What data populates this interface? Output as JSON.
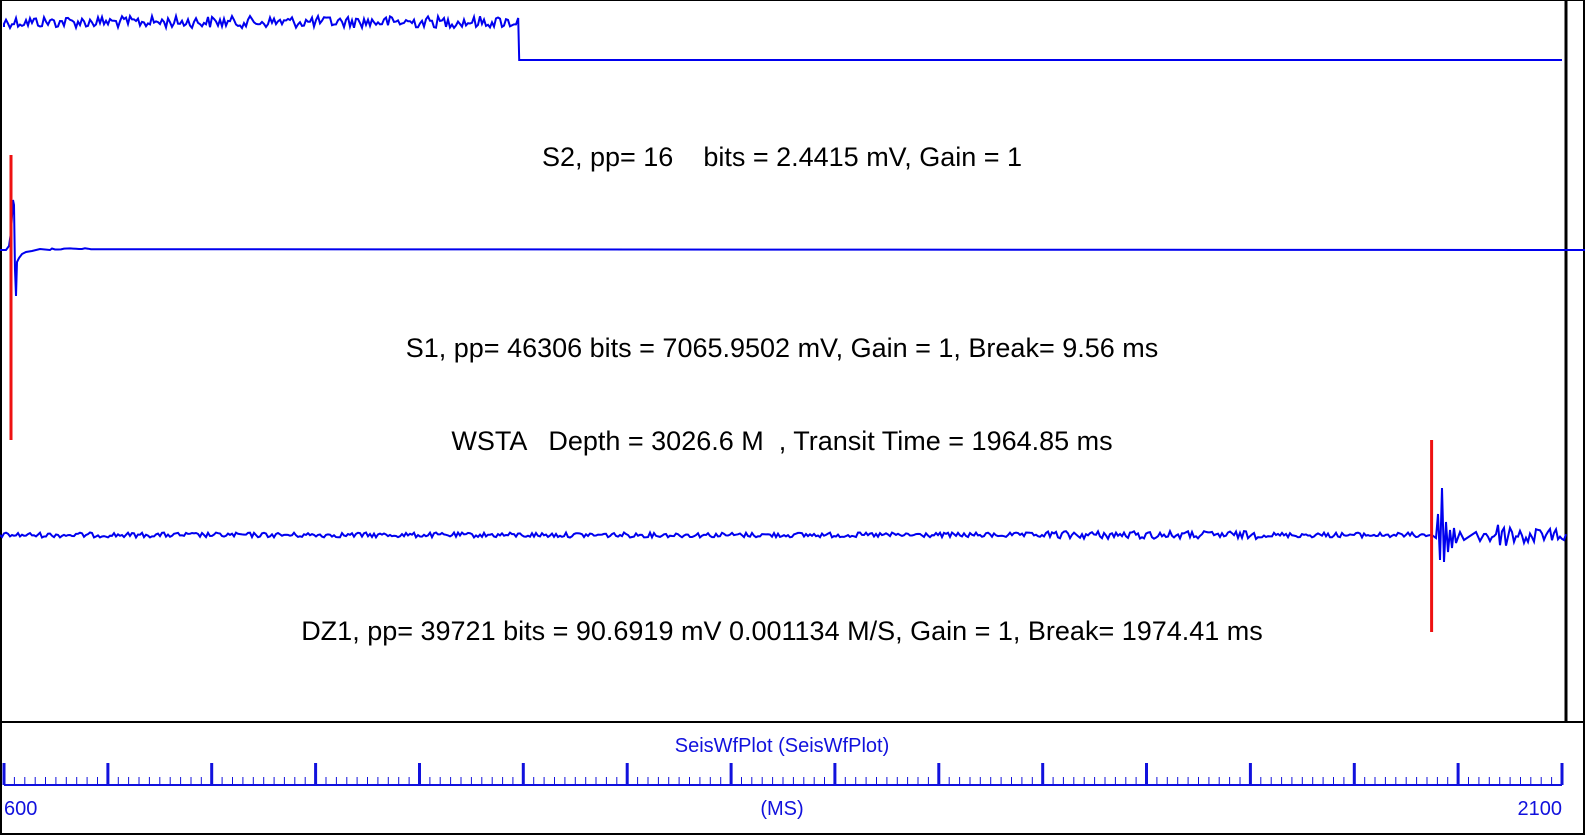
{
  "chart_data": {
    "type": "line",
    "title": "",
    "x_unit_label": "(MS)",
    "xlim": [
      600,
      2100
    ],
    "x_major_tick_step": 100,
    "x_minor_tick_step": 10,
    "header_line": "WSTA   Depth = 3026.6 M  , Transit Time = 1964.85 ms",
    "axis_caption": "SeisWfPlot (SeisWfPlot)",
    "x_tick_labels": [
      "600",
      "2100"
    ],
    "colors": {
      "trace": "#0000ee",
      "break_marker": "#ee1111",
      "axis_text": "#1111dd",
      "frame": "#000000"
    },
    "series": [
      {
        "id": "S2",
        "label": "S2, pp= 16    bits = 2.4415 mV, Gain = 1",
        "pp_bits": 16,
        "pp_mV": 2.4415,
        "gain": 1,
        "break_ms": null,
        "signal_end_ms": 1097,
        "values_note_free": true
      },
      {
        "id": "S1",
        "label": "S1, pp= 46306 bits = 7065.9502 mV, Gain = 1, Break= 9.56 ms",
        "pp_bits": 46306,
        "pp_mV": 7065.9502,
        "gain": 1,
        "break_ms": 9.56,
        "signal_end_ms": 686
      },
      {
        "id": "DZ1",
        "label": "DZ1, pp= 39721 bits = 90.6919 mV 0.001134 M/S, Gain = 1, Break= 1974.41 ms",
        "pp_bits": 39721,
        "pp_mV": 90.6919,
        "velocity": "0.001134 M/S",
        "gain": 1,
        "break_ms": 1974.41,
        "signal_end_ms": 2100
      }
    ]
  }
}
